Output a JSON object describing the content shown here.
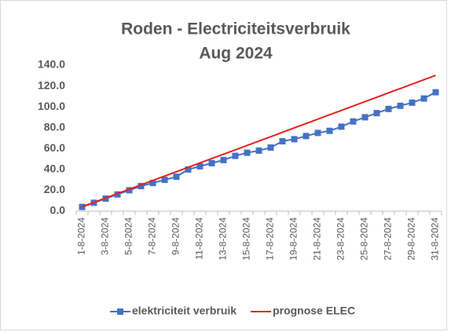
{
  "chart_data": {
    "type": "line",
    "title": "Roden - Electriciteitsverbruik",
    "subtitle": "Aug 2024",
    "categories": [
      "1-8-2024",
      null,
      "3-8-2024",
      null,
      "5-8-2024",
      null,
      "7-8-2024",
      null,
      "9-8-2024",
      null,
      "11-8-2024",
      null,
      "13-8-2024",
      null,
      "15-8-2024",
      null,
      "17-8-2024",
      null,
      "19-8-2024",
      null,
      "21-8-2024",
      null,
      "23-8-2024",
      null,
      "25-8-2024",
      null,
      "27-8-2024",
      null,
      "29-8-2024",
      null,
      "31-8-2024"
    ],
    "series": [
      {
        "name": "elektriciteit verbruik",
        "color": "#4472c4",
        "marker": "square",
        "values": [
          4,
          8,
          12,
          16,
          20,
          24,
          27,
          30,
          33,
          40,
          43,
          46,
          49,
          53,
          56,
          58,
          61,
          67,
          69,
          72,
          75,
          77,
          81,
          86,
          90,
          94,
          98,
          101,
          104,
          108,
          114
        ]
      },
      {
        "name": "prognose ELEC",
        "color": "#e8201f",
        "values": [
          4.2,
          8.4,
          12.6,
          16.8,
          21,
          25.2,
          29.4,
          33.6,
          37.8,
          42,
          46.2,
          50.4,
          54.6,
          58.8,
          63,
          67.2,
          71.4,
          75.6,
          79.8,
          84,
          88.2,
          92.4,
          96.6,
          100.8,
          105,
          109.2,
          113.4,
          117.6,
          121.8,
          126,
          130.2
        ]
      }
    ],
    "ylim": [
      0,
      140
    ],
    "yticks": [
      {
        "value": 0,
        "label": "0.0"
      },
      {
        "value": 20,
        "label": "20.0"
      },
      {
        "value": 40,
        "label": "40.0"
      },
      {
        "value": 60,
        "label": "60.0"
      },
      {
        "value": 80,
        "label": "80.0"
      },
      {
        "value": 100,
        "label": "100.0"
      },
      {
        "value": 120,
        "label": "120.0"
      },
      {
        "value": 140,
        "label": "140.0"
      }
    ],
    "grid": false,
    "legend": "bottom"
  }
}
